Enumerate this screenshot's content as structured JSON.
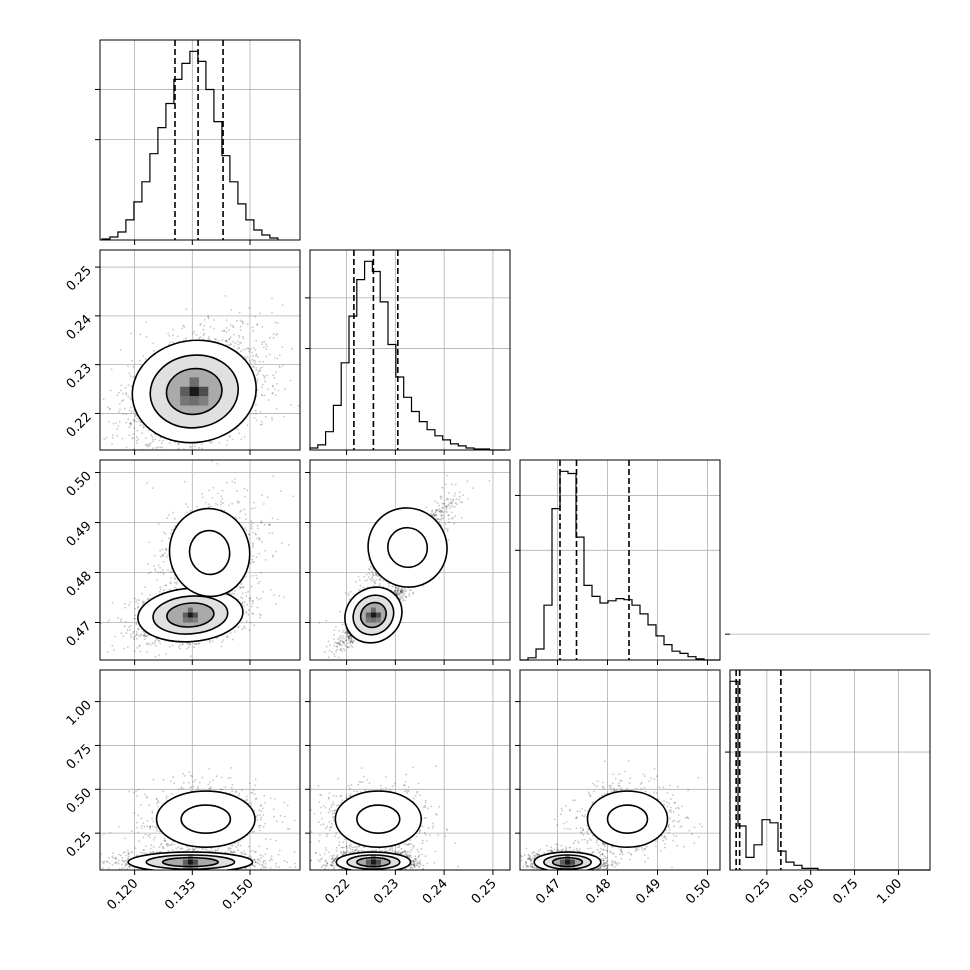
{
  "chart_data": {
    "type": "corner",
    "title": "",
    "grid": true,
    "parameters": [
      {
        "label": "",
        "range": [
          0.111,
          0.163
        ],
        "ticks": [
          0.12,
          0.135,
          0.15
        ],
        "ticklabels": [
          "0.120",
          "0.135",
          "0.150"
        ],
        "quantiles": [
          0.1305,
          0.1365,
          0.143
        ]
      },
      {
        "label": "",
        "range": [
          0.2125,
          0.2535
        ],
        "ticks": [
          0.22,
          0.23,
          0.24,
          0.25
        ],
        "ticklabels": [
          "0.22",
          "0.23",
          "0.24",
          "0.25"
        ],
        "quantiles": [
          0.2215,
          0.2255,
          0.2305
        ]
      },
      {
        "label": "",
        "range": [
          0.4625,
          0.5025
        ],
        "ticks": [
          0.47,
          0.48,
          0.49,
          0.5
        ],
        "ticklabels": [
          "0.47",
          "0.48",
          "0.49",
          "0.50"
        ],
        "quantiles": [
          0.4705,
          0.4738,
          0.4843
        ]
      },
      {
        "label": "",
        "range": [
          0.04,
          1.18
        ],
        "ticks": [
          0.25,
          0.5,
          0.75,
          1.0
        ],
        "ticklabels": [
          "0.25",
          "0.50",
          "0.75",
          "1.00"
        ],
        "quantiles": [
          0.075,
          0.095,
          0.33
        ]
      }
    ],
    "histograms": [
      {
        "param": 0,
        "bin_width": 0.00208,
        "start": 0.1115,
        "counts": [
          1,
          3,
          8,
          20,
          38,
          58,
          86,
          112,
          136,
          160,
          176,
          188,
          178,
          150,
          118,
          84,
          58,
          36,
          20,
          10,
          5,
          2
        ],
        "yticks": [
          100,
          150
        ]
      },
      {
        "param": 1,
        "bin_width": 0.0016,
        "start": 0.2125,
        "counts": [
          2,
          5,
          18,
          44,
          86,
          132,
          168,
          186,
          176,
          146,
          104,
          72,
          52,
          38,
          28,
          20,
          14,
          10,
          6,
          4,
          2,
          1,
          1,
          0,
          0
        ],
        "yticks": [
          100,
          150
        ]
      },
      {
        "param": 2,
        "bin_width": 0.0016,
        "start": 0.4625,
        "counts": [
          0,
          2,
          10,
          50,
          138,
          172,
          170,
          112,
          68,
          58,
          52,
          54,
          56,
          55,
          50,
          42,
          32,
          22,
          14,
          8,
          6,
          3,
          1,
          0,
          0
        ],
        "yticks": [
          100,
          150
        ]
      },
      {
        "param": 3,
        "bin_width": 0.0456,
        "start": 0.04,
        "counts": [
          120,
          28,
          8,
          16,
          32,
          30,
          12,
          5,
          3,
          1,
          1,
          0,
          0,
          0,
          0,
          0,
          0,
          0,
          0,
          0,
          0,
          0,
          0,
          0,
          0
        ],
        "yticks": [
          75,
          150
        ]
      }
    ],
    "pairs": [
      {
        "x": 0,
        "y": 1,
        "mode": "unimodal",
        "center": [
          0.1355,
          0.2245
        ],
        "spread": [
          0.0085,
          0.0055
        ],
        "corr": 0.35
      },
      {
        "x": 0,
        "y": 2,
        "mode": "bimodal",
        "center": [
          0.1345,
          0.4715
        ],
        "spread": [
          0.0072,
          0.0028
        ],
        "center2": [
          0.1395,
          0.484
        ],
        "spread2": [
          0.0065,
          0.0055
        ],
        "corr": 0.3,
        "weight2": 0.38
      },
      {
        "x": 1,
        "y": 2,
        "mode": "bimodal",
        "center": [
          0.2255,
          0.4715
        ],
        "spread": [
          0.0032,
          0.0028
        ],
        "center2": [
          0.2325,
          0.485
        ],
        "spread2": [
          0.005,
          0.005
        ],
        "corr": 0.9,
        "weight2": 0.38
      },
      {
        "x": 0,
        "y": 3,
        "mode": "bimodal",
        "center": [
          0.1345,
          0.085
        ],
        "spread": [
          0.0085,
          0.03
        ],
        "center2": [
          0.1385,
          0.33
        ],
        "spread2": [
          0.008,
          0.1
        ],
        "corr": 0.0,
        "weight2": 0.35
      },
      {
        "x": 1,
        "y": 3,
        "mode": "bimodal",
        "center": [
          0.2255,
          0.085
        ],
        "spread": [
          0.004,
          0.03
        ],
        "center2": [
          0.2265,
          0.33
        ],
        "spread2": [
          0.0055,
          0.1
        ],
        "corr": 0.0,
        "weight2": 0.35
      },
      {
        "x": 2,
        "y": 3,
        "mode": "bimodal",
        "center": [
          0.472,
          0.085
        ],
        "spread": [
          0.0035,
          0.03
        ],
        "center2": [
          0.484,
          0.33
        ],
        "spread2": [
          0.005,
          0.1
        ],
        "corr": 0.0,
        "weight2": 0.35
      }
    ]
  }
}
